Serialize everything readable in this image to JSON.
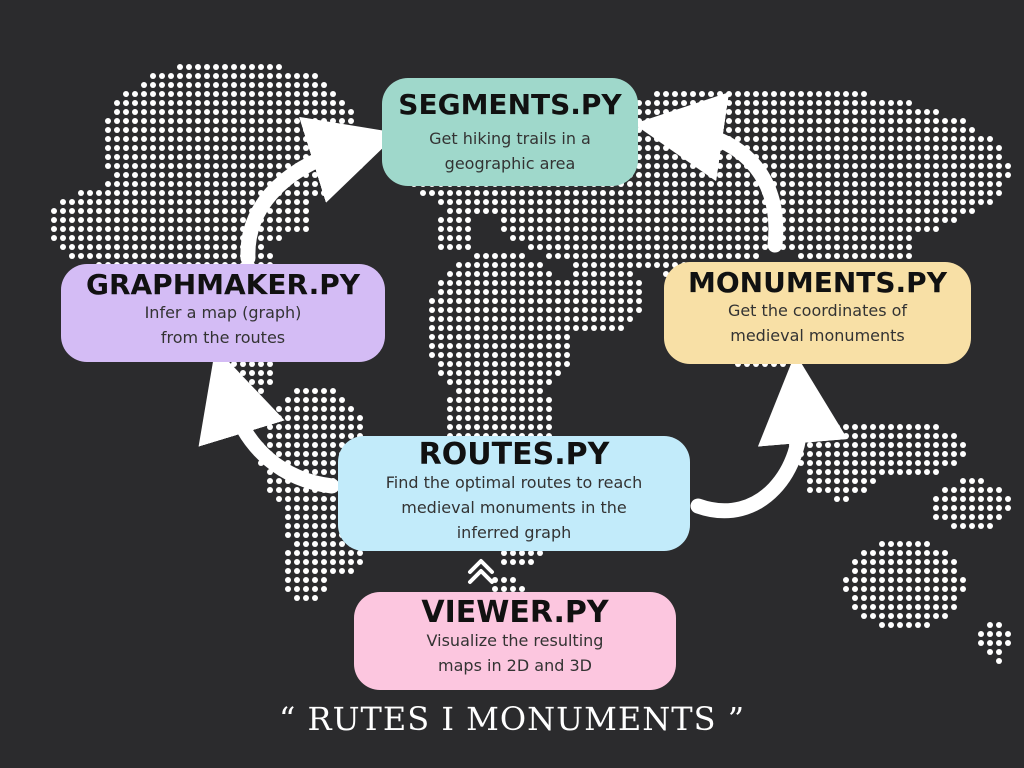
{
  "nodes": {
    "segments": {
      "title": "SEGMENTS.PY",
      "desc": [
        "Get hiking trails in a",
        "geographic area"
      ],
      "color": "#9fd8cb"
    },
    "graphmaker": {
      "title": "GRAPHMAKER.PY",
      "desc": [
        "Infer a map (graph)",
        "from the routes"
      ],
      "color": "#d4bcf5"
    },
    "monuments": {
      "title": "MONUMENTS.PY",
      "desc": [
        "Get the coordinates of",
        "medieval monuments"
      ],
      "color": "#f8e0a6"
    },
    "routes": {
      "title": "ROUTES.PY",
      "desc": [
        "Find the optimal routes to reach",
        "medieval monuments in the",
        "inferred graph"
      ],
      "color": "#c2ebfa"
    },
    "viewer": {
      "title": "VIEWER.PY",
      "desc": [
        "Visualize the resulting",
        "maps in 2D and 3D"
      ],
      "color": "#fcc6df"
    }
  },
  "edges": [
    {
      "from": "graphmaker",
      "to": "segments"
    },
    {
      "from": "monuments",
      "to": "segments"
    },
    {
      "from": "routes",
      "to": "graphmaker"
    },
    {
      "from": "routes",
      "to": "monuments"
    },
    {
      "from": "viewer",
      "to": "routes"
    }
  ],
  "footer": {
    "title": "“ RUTES I MONUMENTS ”"
  },
  "background": {
    "map_icon": "dotted-world-map",
    "dot_color": "#ffffff",
    "background_color": "#2b2b2d"
  }
}
